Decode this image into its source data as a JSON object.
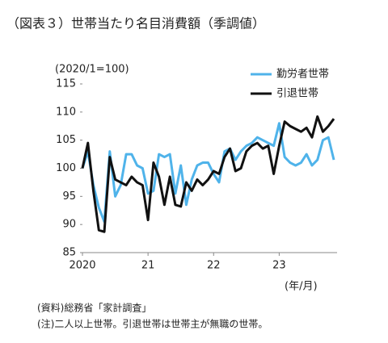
{
  "chart_data": {
    "type": "line",
    "title": "（図表３）世帯当たり名目消費額（季調値）",
    "y_label": "(2020/1=100)",
    "x_label": "(年/月)",
    "categories": [
      "2020",
      null,
      null,
      null,
      null,
      null,
      null,
      null,
      null,
      null,
      null,
      null,
      "21",
      null,
      null,
      null,
      null,
      null,
      null,
      null,
      null,
      null,
      null,
      null,
      "22",
      null,
      null,
      null,
      null,
      null,
      null,
      null,
      null,
      null,
      null,
      null,
      "23",
      null,
      null,
      null,
      null,
      null,
      null,
      null,
      null,
      null,
      null
    ],
    "series": [
      {
        "name": "勤労者世帯",
        "color": "#4fb3ea",
        "values": [
          100,
          103,
          97,
          93,
          90.5,
          103,
          95,
          97,
          102.5,
          102.5,
          100.5,
          100,
          95.5,
          96,
          102.5,
          102,
          102.5,
          95.5,
          100.5,
          93.5,
          98,
          100.5,
          101,
          101,
          99,
          97.5,
          103,
          103.5,
          101.5,
          103,
          104,
          104.5,
          105.5,
          105,
          104.5,
          104,
          108,
          102,
          101,
          100.5,
          101,
          102.5,
          100.5,
          101.5,
          105,
          105.5,
          101.5
        ]
      },
      {
        "name": "引退世帯",
        "color": "#111111",
        "values": [
          100,
          104.5,
          96,
          89,
          88.7,
          102,
          98,
          97.5,
          97,
          98.5,
          97.5,
          97,
          90.8,
          101,
          98.5,
          93.5,
          98.5,
          93.5,
          93.2,
          97.5,
          96,
          98,
          97,
          98,
          99.5,
          99,
          102,
          103.5,
          99.5,
          100,
          103,
          104,
          104.5,
          103.5,
          104,
          99,
          104,
          108.3,
          107.5,
          107,
          106.5,
          107.2,
          105.5,
          109.2,
          106.5,
          107.5,
          108.8
        ]
      }
    ],
    "ylim": [
      85,
      115
    ],
    "yticks": [
      85,
      90,
      95,
      100,
      105,
      110,
      115
    ],
    "legend": "upper right",
    "notes": [
      "(資料)総務省「家計調査」",
      "(注)二人以上世帯。引退世帯は世帯主が無職の世帯。"
    ]
  }
}
